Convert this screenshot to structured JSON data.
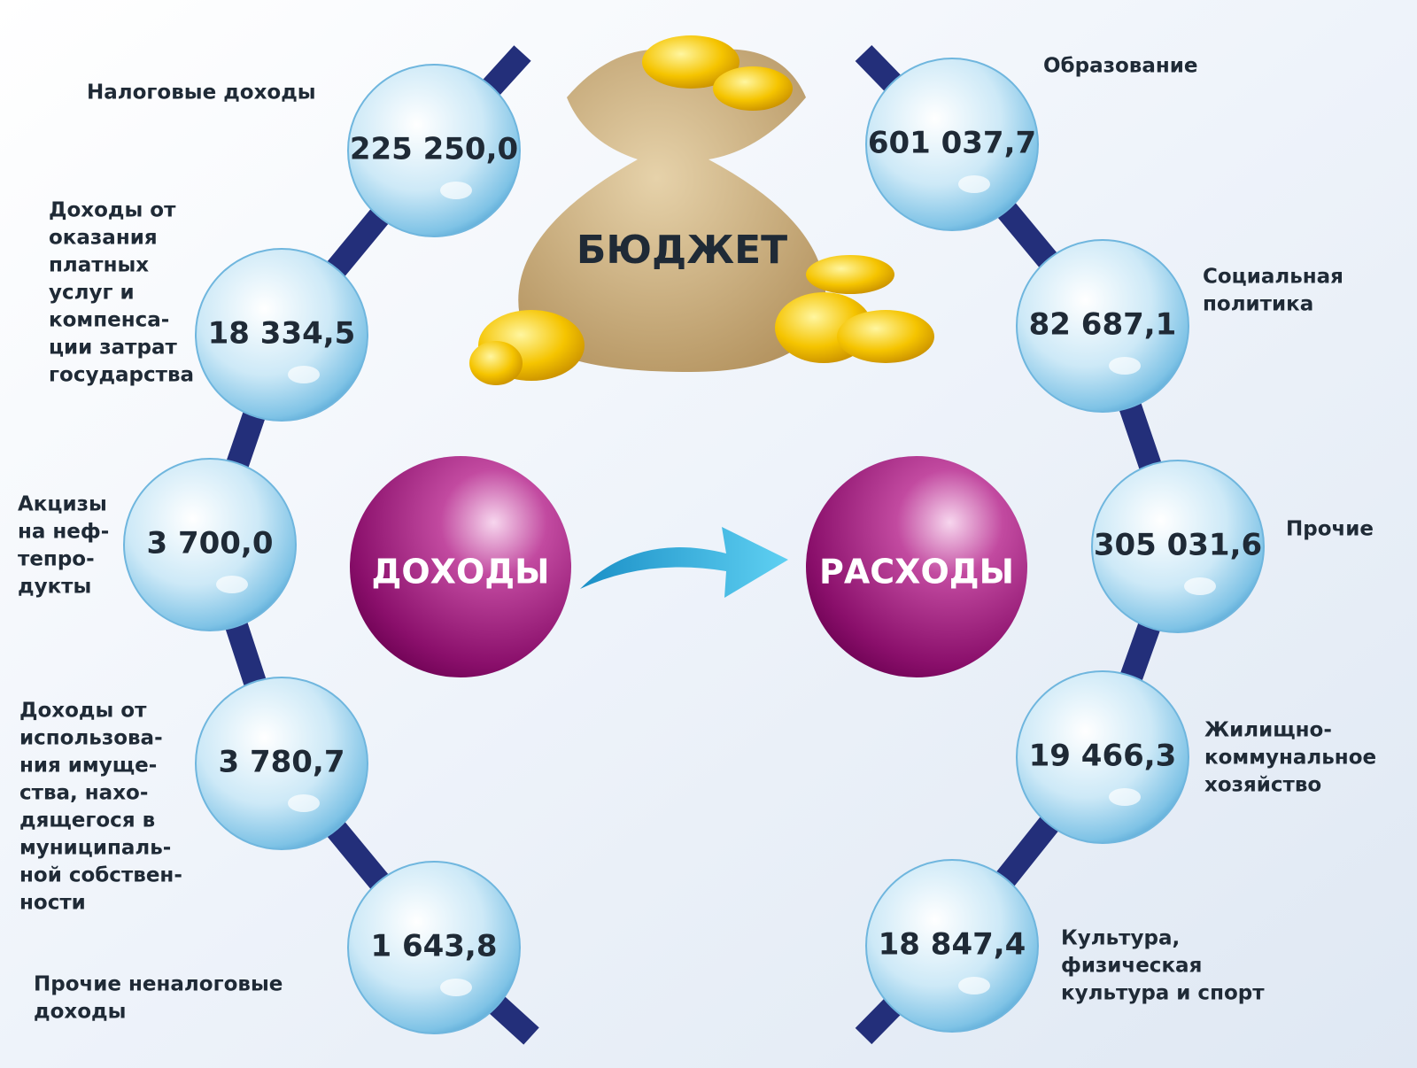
{
  "title": "БЮДЖЕТ",
  "income": {
    "title": "ДОХОДЫ",
    "items": [
      {
        "lines": [
          "Налоговые доходы"
        ],
        "value": "225 250,0"
      },
      {
        "lines": [
          "Доходы от",
          "оказания",
          "платных",
          "услуг и",
          "компенса-",
          "ции затрат",
          "государства"
        ],
        "value": "18 334,5"
      },
      {
        "lines": [
          "Акцизы",
          "на неф-",
          "тепро-",
          "дукты"
        ],
        "value": "3 700,0"
      },
      {
        "lines": [
          "Доходы от",
          "использова-",
          "ния имуще-",
          "ства, нахо-",
          "дящегося в",
          "муниципаль-",
          "ной собствен-",
          "ности"
        ],
        "value": "3 780,7"
      },
      {
        "lines": [
          "Прочие неналоговые",
          "доходы"
        ],
        "value": "1 643,8"
      }
    ]
  },
  "expenses": {
    "title": "РАСХОДЫ",
    "items": [
      {
        "lines": [
          "Образование"
        ],
        "value": "601 037,7"
      },
      {
        "lines": [
          "Социальная",
          "политика"
        ],
        "value": "82 687,1"
      },
      {
        "lines": [
          "Прочие"
        ],
        "value": "305 031,6"
      },
      {
        "lines": [
          "Жилищно-",
          "коммунальное",
          "хозяйство"
        ],
        "value": "19 466,3"
      },
      {
        "lines": [
          "Культура,",
          "физическая",
          "культура и спорт"
        ],
        "value": "18 847,4"
      }
    ]
  }
}
